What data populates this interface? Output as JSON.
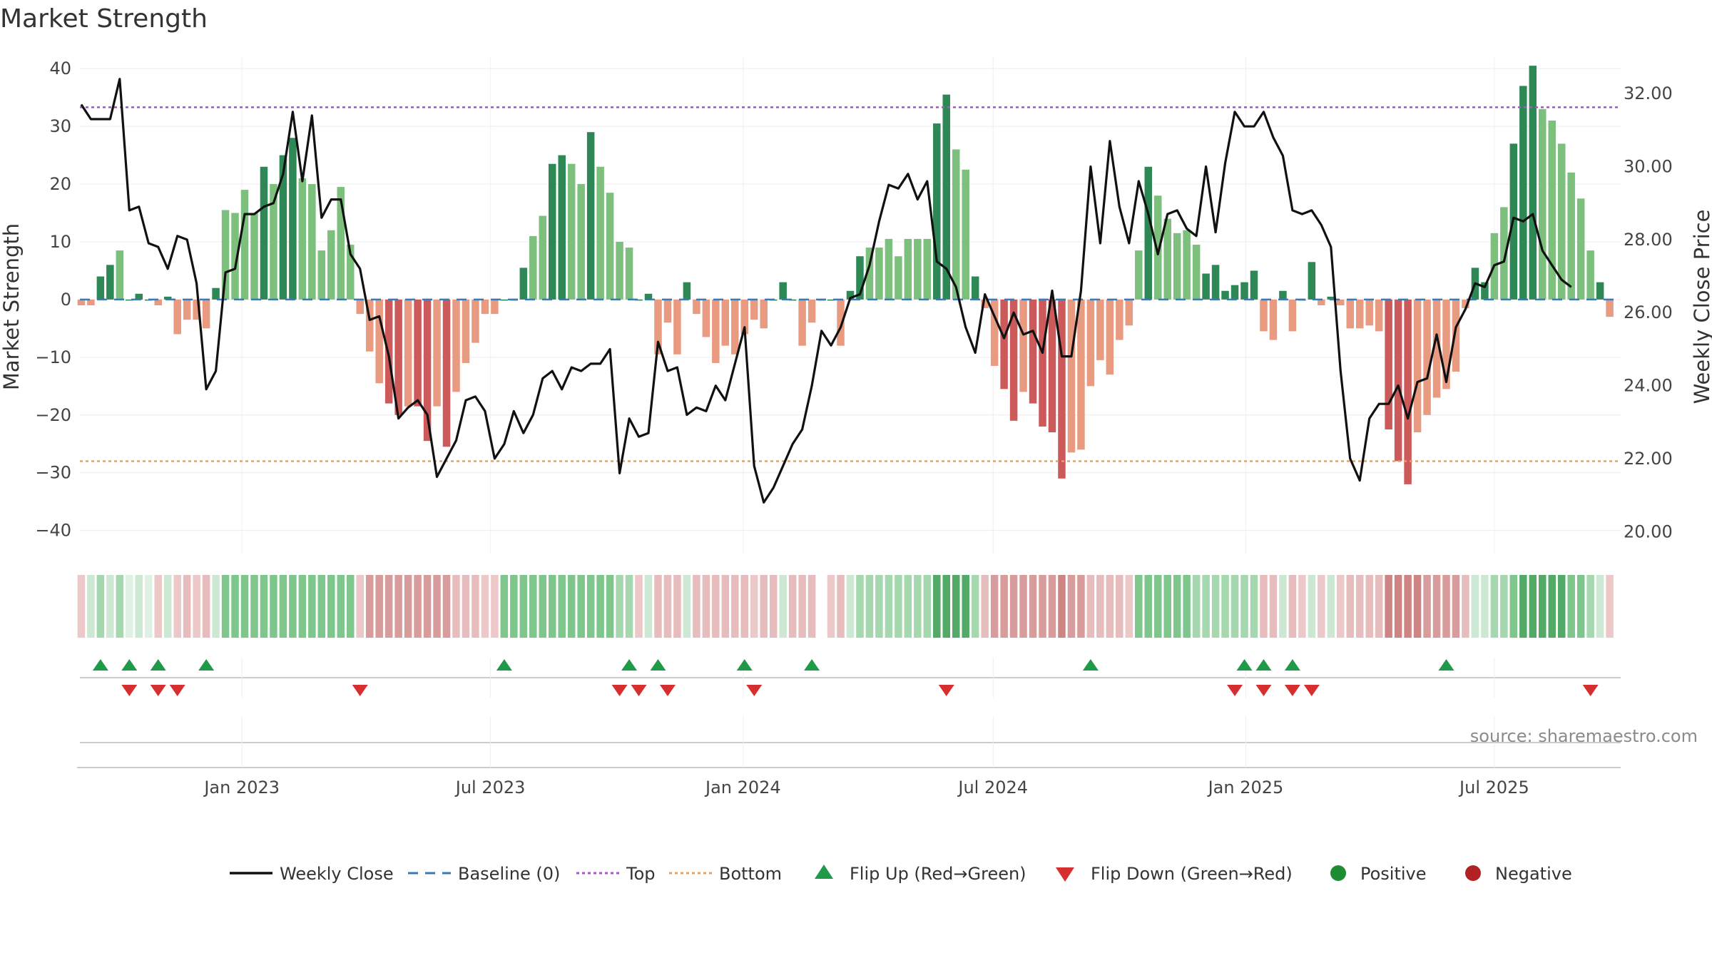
{
  "chart_data": {
    "type": "bar",
    "title": "Market Strength",
    "ylabel": "Market Strength",
    "y2label": "Weekly Close Price",
    "ylim": [
      -44,
      42
    ],
    "y2lim": [
      19.4,
      33.0
    ],
    "yticks": [
      "40",
      "30",
      "20",
      "10",
      "0",
      "−10",
      "−20",
      "−30",
      "−40"
    ],
    "y2ticks": [
      "32.00",
      "30.00",
      "28.00",
      "26.00",
      "24.00",
      "22.00",
      "20.00"
    ],
    "x_start": "2022-09-05",
    "x_end": "2025-10-01",
    "xticks": [
      {
        "date": "2023-01-01",
        "label": "Jan 2023"
      },
      {
        "date": "2023-07-01",
        "label": "Jul 2023"
      },
      {
        "date": "2024-01-01",
        "label": "Jan 2024"
      },
      {
        "date": "2024-07-01",
        "label": "Jul 2024"
      },
      {
        "date": "2025-01-01",
        "label": "Jan 2025"
      },
      {
        "date": "2025-07-01",
        "label": "Jul 2025"
      }
    ],
    "first_week": "2022-09-06",
    "top_line": 33.3,
    "bottom_line": -28.0,
    "baseline": 0,
    "strength": [
      -1,
      -1,
      4,
      6,
      8.5,
      0,
      1,
      0,
      -1,
      0.5,
      -6,
      -3.5,
      -3.5,
      -5,
      2,
      15.5,
      15,
      19,
      15,
      23,
      20,
      25,
      28,
      21,
      20,
      8.5,
      12,
      19.5,
      9.5,
      -2.5,
      -9,
      -14.5,
      -18,
      -20,
      -18.5,
      -18.5,
      -24.5,
      -18.5,
      -25.5,
      -16,
      -11,
      -7.5,
      -2.5,
      -2.5,
      0,
      0,
      5.5,
      11,
      14.5,
      23.5,
      25,
      23.5,
      20,
      29,
      23,
      18.5,
      10,
      9,
      0,
      1,
      -9.5,
      -4,
      -9.5,
      3,
      -2.5,
      -6.5,
      -11,
      -8,
      -9.5,
      -6,
      -3.5,
      -5,
      0,
      3,
      0,
      -8,
      -4,
      0,
      0,
      -8,
      1.5,
      7.5,
      9,
      9,
      10.5,
      7.5,
      10.5,
      10.5,
      10.5,
      30.5,
      35.5,
      26,
      22.5,
      4,
      -1.5,
      -11.5,
      -15.5,
      -21,
      -16,
      -18,
      -22,
      -23,
      -31,
      -26.5,
      -26,
      -15,
      -10.5,
      -13,
      -7,
      -4.5,
      8.5,
      23,
      18,
      14,
      11.5,
      12,
      9.5,
      4.5,
      6,
      1.5,
      2.5,
      3,
      5,
      -5.5,
      -7,
      1.5,
      -5.5,
      0,
      6.5,
      -1,
      0.5,
      -1,
      -5,
      -5,
      -4.5,
      -5.5,
      -22.5,
      -28,
      -32,
      -23,
      -20,
      -17,
      -15.5,
      -12.5,
      -1.5,
      5.5,
      3,
      11.5,
      16,
      27,
      37,
      40.5,
      33,
      31,
      27,
      22,
      17.5,
      8.5,
      3,
      -3
    ],
    "price": [
      31.7,
      31.3,
      31.3,
      31.3,
      32.4,
      28.8,
      28.9,
      27.9,
      27.8,
      27.2,
      28.1,
      28.0,
      26.8,
      23.9,
      24.4,
      27.1,
      27.2,
      28.7,
      28.7,
      28.9,
      29.0,
      29.8,
      31.5,
      29.6,
      31.4,
      28.6,
      29.1,
      29.1,
      27.6,
      27.2,
      25.8,
      25.9,
      24.8,
      23.1,
      23.4,
      23.6,
      23.2,
      21.5,
      22.0,
      22.5,
      23.6,
      23.7,
      23.3,
      22.0,
      22.4,
      23.3,
      22.7,
      23.2,
      24.2,
      24.4,
      23.9,
      24.5,
      24.4,
      24.6,
      24.6,
      25.0,
      21.6,
      23.1,
      22.6,
      22.7,
      25.2,
      24.4,
      24.5,
      23.2,
      23.4,
      23.3,
      24.0,
      23.6,
      24.6,
      25.6,
      21.8,
      20.8,
      21.2,
      21.8,
      22.4,
      22.8,
      24.0,
      25.5,
      25.1,
      25.6,
      26.4,
      26.5,
      27.3,
      28.5,
      29.5,
      29.4,
      29.8,
      29.1,
      29.6,
      27.4,
      27.2,
      26.7,
      25.6,
      24.9,
      26.5,
      25.9,
      25.3,
      26.0,
      25.4,
      25.5,
      24.9,
      26.6,
      24.8,
      24.8,
      26.6,
      30.0,
      27.9,
      30.7,
      28.9,
      27.9,
      29.6,
      28.7,
      27.6,
      28.7,
      28.8,
      28.3,
      28.1,
      30.0,
      28.2,
      30.1,
      31.5,
      31.1,
      31.1,
      31.5,
      30.8,
      30.3,
      28.8,
      28.7,
      28.8,
      28.4,
      27.8,
      24.4,
      22.0,
      21.4,
      23.1,
      23.5,
      23.5,
      24.0,
      23.1,
      24.1,
      24.2,
      25.4,
      24.1,
      25.6,
      26.1,
      26.8,
      26.7,
      27.3,
      27.4,
      28.6,
      28.5,
      28.7,
      27.7,
      27.3,
      26.9,
      26.7
    ],
    "regime_bands": [
      "#ecc8c8",
      "#cce8d2",
      "#a5d8ae",
      "#cce8d2",
      "#a5d8ae",
      "#dff1e2",
      "#cce8d2",
      "#dff1e2",
      "#ecc8c8",
      "#cce8d2",
      "#ecc8c8",
      "#e7bcbc",
      "#ecc8c8",
      "#e7bcbc",
      "#cce8d2",
      "#7ec68c",
      "#7ec68c",
      "#7ec68c",
      "#7ec68c",
      "#7ec68c",
      "#7ec68c",
      "#7ec68c",
      "#7ec68c",
      "#7ec68c",
      "#7ec68c",
      "#7ec68c",
      "#7ec68c",
      "#7ec68c",
      "#7ec68c",
      "#ecc8c8",
      "#d99c9c",
      "#d99c9c",
      "#d99c9c",
      "#d99c9c",
      "#d99c9c",
      "#d99c9c",
      "#d99c9c",
      "#d99c9c",
      "#d99c9c",
      "#e7bcbc",
      "#e7bcbc",
      "#e7bcbc",
      "#ecc8c8",
      "#ecc8c8",
      "#7ec68c",
      "#7ec68c",
      "#7ec68c",
      "#7ec68c",
      "#7ec68c",
      "#7ec68c",
      "#7ec68c",
      "#7ec68c",
      "#7ec68c",
      "#7ec68c",
      "#7ec68c",
      "#7ec68c",
      "#a5d8ae",
      "#a5d8ae",
      "#ecc8c8",
      "#cce8d2",
      "#e7bcbc",
      "#e7bcbc",
      "#e7bcbc",
      "#cce8d2",
      "#e7bcbc",
      "#e7bcbc",
      "#e7bcbc",
      "#e7bcbc",
      "#e7bcbc",
      "#e7bcbc",
      "#ecc8c8",
      "#e7bcbc",
      "#e7bcbc",
      "#cce8d2",
      "#e7bcbc",
      "#e7bcbc",
      "#e7bcbc",
      "#ffffff",
      "#ecc8c8",
      "#e7bcbc",
      "#cce8d2",
      "#a5d8ae",
      "#a5d8ae",
      "#a5d8ae",
      "#a5d8ae",
      "#a5d8ae",
      "#a5d8ae",
      "#a5d8ae",
      "#a5d8ae",
      "#52aa66",
      "#52aa66",
      "#52aa66",
      "#52aa66",
      "#a5d8ae",
      "#e7bcbc",
      "#d99c9c",
      "#d99c9c",
      "#d99c9c",
      "#d99c9c",
      "#d99c9c",
      "#d99c9c",
      "#d99c9c",
      "#cf8484",
      "#d99c9c",
      "#d99c9c",
      "#e7bcbc",
      "#e7bcbc",
      "#e7bcbc",
      "#e7bcbc",
      "#ecc8c8",
      "#7ec68c",
      "#7ec68c",
      "#7ec68c",
      "#7ec68c",
      "#7ec68c",
      "#7ec68c",
      "#a5d8ae",
      "#a5d8ae",
      "#a5d8ae",
      "#a5d8ae",
      "#a5d8ae",
      "#a5d8ae",
      "#a5d8ae",
      "#e7bcbc",
      "#e7bcbc",
      "#cce8d2",
      "#e7bcbc",
      "#ecc8c8",
      "#cce8d2",
      "#ecc8c8",
      "#cce8d2",
      "#ecc8c8",
      "#e7bcbc",
      "#e7bcbc",
      "#e7bcbc",
      "#e7bcbc",
      "#cf8484",
      "#cf8484",
      "#cf8484",
      "#cf8484",
      "#d99c9c",
      "#d99c9c",
      "#d99c9c",
      "#d99c9c",
      "#e7bcbc",
      "#cce8d2",
      "#cce8d2",
      "#a5d8ae",
      "#a5d8ae",
      "#7ec68c",
      "#52aa66",
      "#52aa66",
      "#52aa66",
      "#52aa66",
      "#52aa66",
      "#7ec68c",
      "#7ec68c",
      "#a5d8ae",
      "#cce8d2",
      "#ecc8c8"
    ],
    "flip_up_weeks": [
      2,
      5,
      8,
      13,
      44,
      57,
      60,
      69,
      76,
      105,
      121,
      123,
      126,
      142
    ],
    "flip_down_weeks": [
      5,
      8,
      10,
      29,
      56,
      58,
      61,
      70,
      90,
      120,
      123,
      126,
      128,
      157
    ],
    "legend": [
      {
        "label": "Weekly Close",
        "marker": "line-solid",
        "color": "#111111"
      },
      {
        "label": "Baseline (0)",
        "marker": "line-dashed",
        "color": "#3d7ab5"
      },
      {
        "label": "Top",
        "marker": "line-dotted",
        "color": "#a855c8"
      },
      {
        "label": "Bottom",
        "marker": "line-dotted",
        "color": "#e8a060"
      },
      {
        "label": "Flip Up (Red→Green)",
        "marker": "triangle-up",
        "color": "#1f9a48"
      },
      {
        "label": "Flip Down (Green→Red)",
        "marker": "triangle-down",
        "color": "#d62f2f"
      },
      {
        "label": "Positive",
        "marker": "circle",
        "color": "#1e8c30"
      },
      {
        "label": "Negative",
        "marker": "circle",
        "color": "#b22222"
      }
    ],
    "colors": {
      "strong_positive": "#2e8856",
      "weak_positive": "#7dbf7d",
      "strong_negative": "#cc5a5a",
      "weak_negative": "#e89b80",
      "price_line": "#111111",
      "top_line": "#a855c8",
      "bottom_line": "#e8a060",
      "baseline": "#3d7ab5",
      "flip_up": "#1f9a48",
      "flip_down": "#d62f2f"
    }
  },
  "source_text": "source: sharemaestro.com"
}
